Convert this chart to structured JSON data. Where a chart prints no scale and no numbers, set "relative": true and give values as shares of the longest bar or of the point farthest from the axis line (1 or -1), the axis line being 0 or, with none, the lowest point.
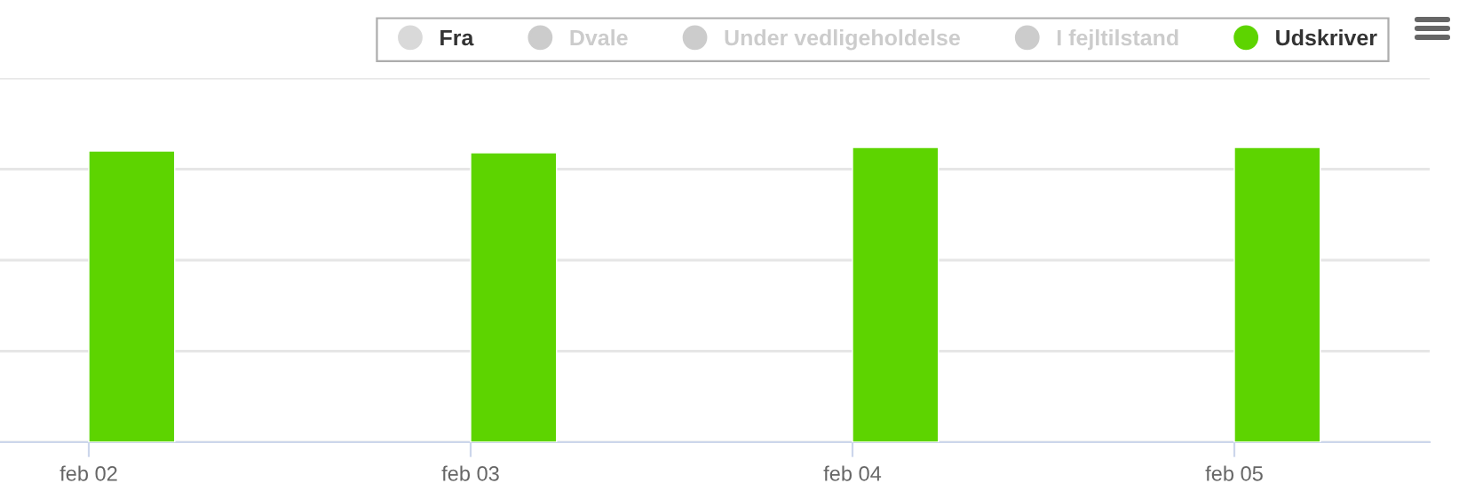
{
  "chart_data": {
    "type": "bar",
    "relative": true,
    "categories": [
      "feb 02",
      "feb 03",
      "feb 04",
      "feb 05"
    ],
    "series": [
      {
        "name": "Fra",
        "color": "#d9d9d9",
        "values": [
          0,
          0,
          0,
          0
        ]
      },
      {
        "name": "Dvale",
        "color": "#cccccc",
        "values": [
          null,
          null,
          null,
          null
        ]
      },
      {
        "name": "Under vedligeholdelse",
        "color": "#cccccc",
        "values": [
          null,
          null,
          null,
          null
        ]
      },
      {
        "name": "I fejltilstand",
        "color": "#cccccc",
        "values": [
          null,
          null,
          null,
          null
        ]
      },
      {
        "name": "Udskriver",
        "color": "#5dd400",
        "values": [
          0.988,
          0.982,
          1,
          1
        ]
      }
    ],
    "grid": "y",
    "legend": "top right"
  }
}
